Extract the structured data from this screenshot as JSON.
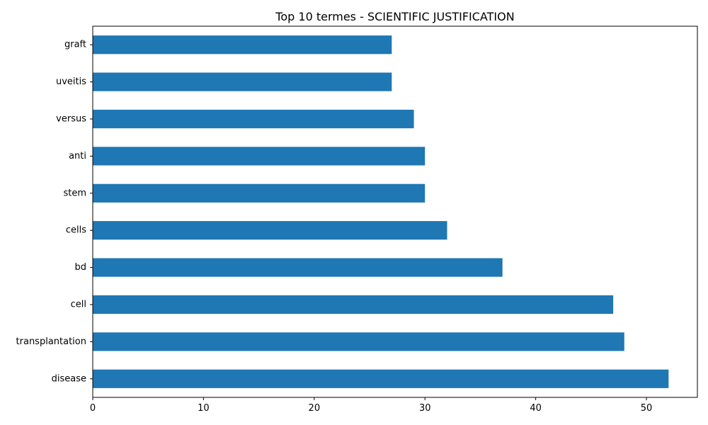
{
  "chart_data": {
    "type": "bar",
    "orientation": "horizontal",
    "title": "Top 10 termes - SCIENTIFIC JUSTIFICATION",
    "xlabel": "",
    "ylabel": "",
    "categories": [
      "graft",
      "uveitis",
      "versus",
      "anti",
      "stem",
      "cells",
      "bd",
      "cell",
      "transplantation",
      "disease"
    ],
    "values": [
      27,
      27,
      29,
      30,
      30,
      32,
      37,
      47,
      48,
      52
    ],
    "xlim": [
      0,
      54.6
    ],
    "xticks": [
      "0",
      "10",
      "20",
      "30",
      "40",
      "50"
    ],
    "grid": false,
    "legend": "none",
    "bar_color": "#1f77b4"
  }
}
